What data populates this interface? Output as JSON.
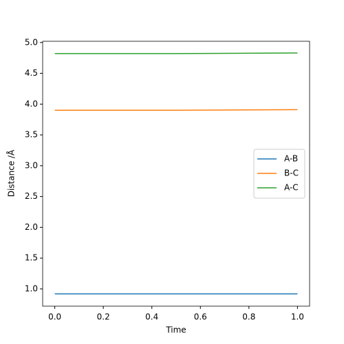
{
  "chart_data": {
    "type": "line",
    "xlabel": "Time",
    "ylabel": "Distance /Å",
    "x": [
      0,
      0.5,
      1
    ],
    "series": [
      {
        "name": "A-B",
        "color": "#1f77b4",
        "values": [
          0.92,
          0.92,
          0.92
        ]
      },
      {
        "name": "B-C",
        "color": "#ff7f0e",
        "values": [
          3.9,
          3.9,
          3.91
        ]
      },
      {
        "name": "A-C",
        "color": "#2ca02c",
        "values": [
          4.82,
          4.82,
          4.83
        ]
      }
    ],
    "xlim": [
      -0.05,
      1.05
    ],
    "xticks": [
      {
        "value": 0,
        "label": "0.0"
      },
      0.2,
      0.4,
      0.6,
      0.8,
      {
        "value": 1,
        "label": "1.0"
      }
    ],
    "ylim": [
      0.72,
      5.02
    ],
    "yticks": [
      {
        "value": 1,
        "label": "1.0"
      },
      1.5,
      {
        "value": 2,
        "label": "2.0"
      },
      2.5,
      {
        "value": 3,
        "label": "3.0"
      },
      3.5,
      {
        "value": 4,
        "label": "4.0"
      },
      4.5,
      {
        "value": 5,
        "label": "5.0"
      }
    ],
    "legend": "center right",
    "grid": false
  }
}
